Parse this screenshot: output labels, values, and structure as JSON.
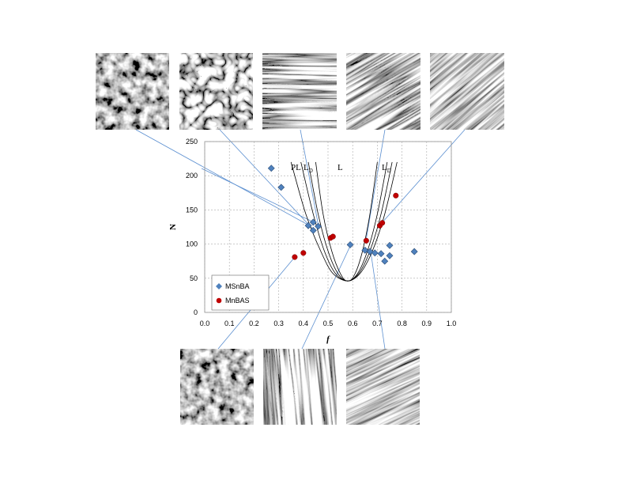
{
  "chart_data": {
    "type": "scatter",
    "xlabel": "f",
    "ylabel": "N",
    "xlim": [
      0,
      1
    ],
    "ylim": [
      0,
      250
    ],
    "xticks": [
      {
        "value": 0,
        "label": "0.0"
      },
      0.1,
      0.2,
      0.3,
      0.4,
      0.5,
      0.6,
      0.7,
      0.8,
      0.9,
      {
        "value": 1,
        "label": "1.0"
      }
    ],
    "yticks": [
      0,
      50,
      100,
      150,
      200,
      250
    ],
    "grid": true,
    "legend": "lower left",
    "series": [
      {
        "name": "MSnBA",
        "color": "#4f81bd",
        "marker": "diamond",
        "x": [
          0.27,
          0.31,
          0.42,
          0.44,
          0.44,
          0.46,
          0.59,
          0.65,
          0.67,
          0.69,
          0.715,
          0.73,
          0.75,
          0.75,
          0.85
        ],
        "values": [
          211,
          183,
          127,
          132,
          120,
          126,
          99,
          91,
          89,
          87,
          86,
          75,
          83,
          98,
          89
        ]
      },
      {
        "name": "MnBAS",
        "color": "#c00000",
        "marker": "circle",
        "x": [
          0.365,
          0.4,
          0.51,
          0.52,
          0.655,
          0.71,
          0.72,
          0.775
        ],
        "values": [
          81,
          87,
          109,
          111,
          105,
          127,
          131,
          171
        ]
      }
    ],
    "boundaries": [
      {
        "x": [
          0.35,
          0.41,
          0.47,
          0.52,
          0.58,
          0.61,
          0.64,
          0.67,
          0.7
        ],
        "y": [
          220,
          144,
          90,
          57,
          46,
          57,
          90,
          144,
          220
        ]
      },
      {
        "x": [
          0.39,
          0.44,
          0.485,
          0.53,
          0.58,
          0.62,
          0.66,
          0.7,
          0.74
        ],
        "y": [
          220,
          144,
          90,
          57,
          46,
          57,
          90,
          144,
          220
        ]
      },
      {
        "x": [
          0.42,
          0.46,
          0.5,
          0.54,
          0.58,
          0.625,
          0.67,
          0.715,
          0.76
        ],
        "y": [
          220,
          144,
          90,
          57,
          46,
          57,
          90,
          144,
          220
        ]
      },
      {
        "x": [
          0.45,
          0.48,
          0.515,
          0.55,
          0.58,
          0.63,
          0.68,
          0.73,
          0.78
        ],
        "y": [
          220,
          144,
          90,
          57,
          46,
          57,
          90,
          144,
          220
        ]
      }
    ],
    "phase_labels": [
      {
        "main": "PL"
      },
      {
        "main": "L",
        "sub": "D"
      },
      {
        "main": "L"
      },
      {
        "main": "L",
        "sub": "D"
      }
    ]
  }
}
